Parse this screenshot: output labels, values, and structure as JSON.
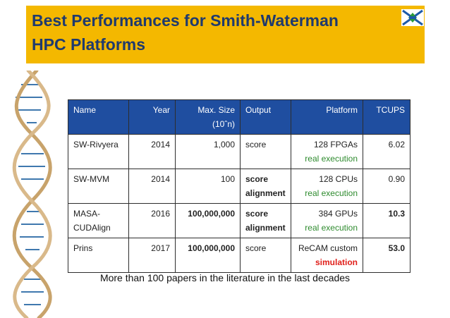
{
  "title": {
    "line1": "Best Performances for Smith-Waterman",
    "line2": "HPC Platforms"
  },
  "table": {
    "headers": {
      "name": "Name",
      "year": "Year",
      "size_line1": "Max. Size",
      "size_line2": "(10ˆn)",
      "output": "Output",
      "platform": "Platform",
      "tcups": "TCUPS"
    },
    "rows": [
      {
        "name_line1": "SW-Rivyera",
        "name_line2": "",
        "year": "2014",
        "size": "1,000",
        "output_line1": "score",
        "output_line2": "",
        "platform": "128 FPGAs",
        "platform_note": "real execution",
        "tcups": "6.02"
      },
      {
        "name_line1": "SW-MVM",
        "name_line2": "",
        "year": "2014",
        "size": "100",
        "output_line1": "score",
        "output_line2": "alignment",
        "platform": "128 CPUs",
        "platform_note": "real execution",
        "tcups": "0.90"
      },
      {
        "name_line1": "MASA-",
        "name_line2": "CUDAlign",
        "year": "2016",
        "size": "100,000,000",
        "output_line1": "score",
        "output_line2": "alignment",
        "platform": "384 GPUs",
        "platform_note": "real execution",
        "tcups": "10.3"
      },
      {
        "name_line1": "Prins",
        "name_line2": "",
        "year": "2017",
        "size": "100,000,000",
        "output_line1": "score",
        "output_line2": "",
        "platform": "ReCAM custom",
        "platform_note": "simulation",
        "tcups": "53.0"
      }
    ]
  },
  "footer": "More than 100 papers in the literature in the last decades",
  "colors": {
    "title_bar": "#f4b800",
    "title_text": "#1f3a6e",
    "header_bg": "#1f4ea0",
    "note_green": "#2e8b2e",
    "note_red": "#e0201b"
  },
  "icons": {
    "logo": "university-logo-icon",
    "decoration": "dna-helix-icon"
  }
}
